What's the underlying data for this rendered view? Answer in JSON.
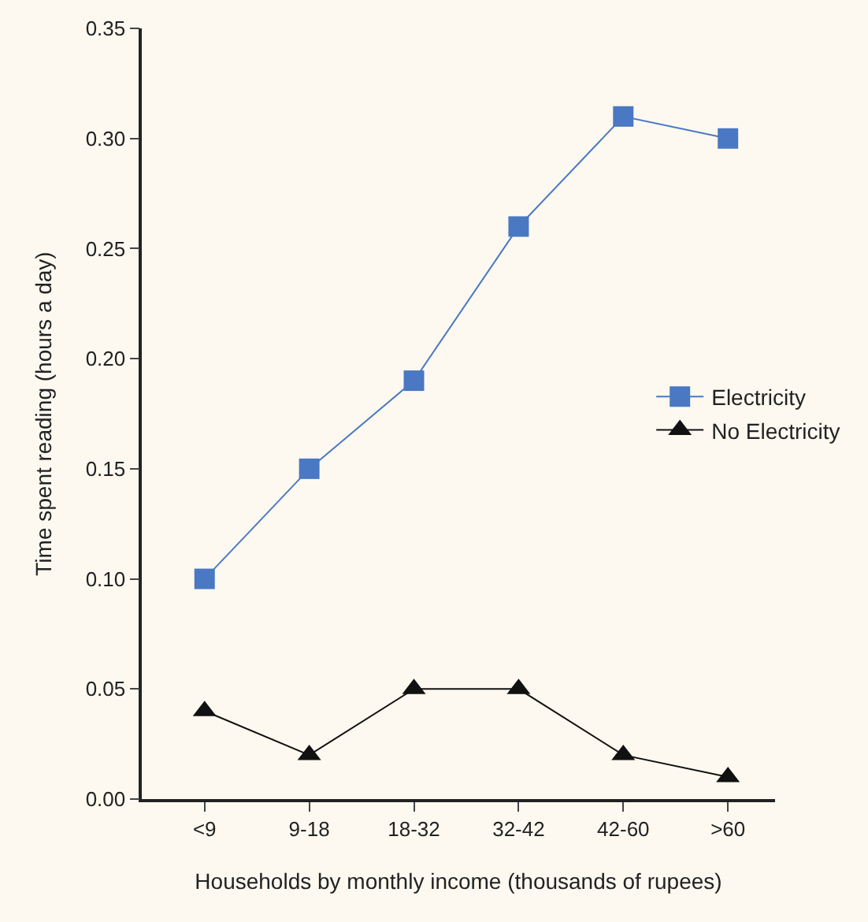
{
  "chart_data": {
    "type": "line",
    "xlabel": "Households by monthly income (thousands of rupees)",
    "ylabel": "Time spent reading (hours a day)",
    "categories": [
      "<9",
      "9-18",
      "18-32",
      "32-42",
      "42-60",
      ">60"
    ],
    "series": [
      {
        "name": "Electricity",
        "color": "#4a78c2",
        "marker": "square",
        "values": [
          0.1,
          0.15,
          0.19,
          0.26,
          0.31,
          0.3
        ]
      },
      {
        "name": "No Electricity",
        "color": "#111111",
        "marker": "triangle",
        "values": [
          0.04,
          0.02,
          0.05,
          0.05,
          0.02,
          0.01
        ]
      }
    ],
    "ylim": [
      0,
      0.35
    ],
    "yticks": [
      {
        "value": 0,
        "label": "0.00"
      },
      {
        "value": 0.05,
        "label": "0.05"
      },
      {
        "value": 0.1,
        "label": "0.10"
      },
      {
        "value": 0.15,
        "label": "0.15"
      },
      {
        "value": 0.2,
        "label": "0.20"
      },
      {
        "value": 0.25,
        "label": "0.25"
      },
      {
        "value": 0.3,
        "label": "0.30"
      },
      {
        "value": 0.35,
        "label": "0.35"
      }
    ],
    "grid": false,
    "legend": "right",
    "line_style": "solid"
  }
}
